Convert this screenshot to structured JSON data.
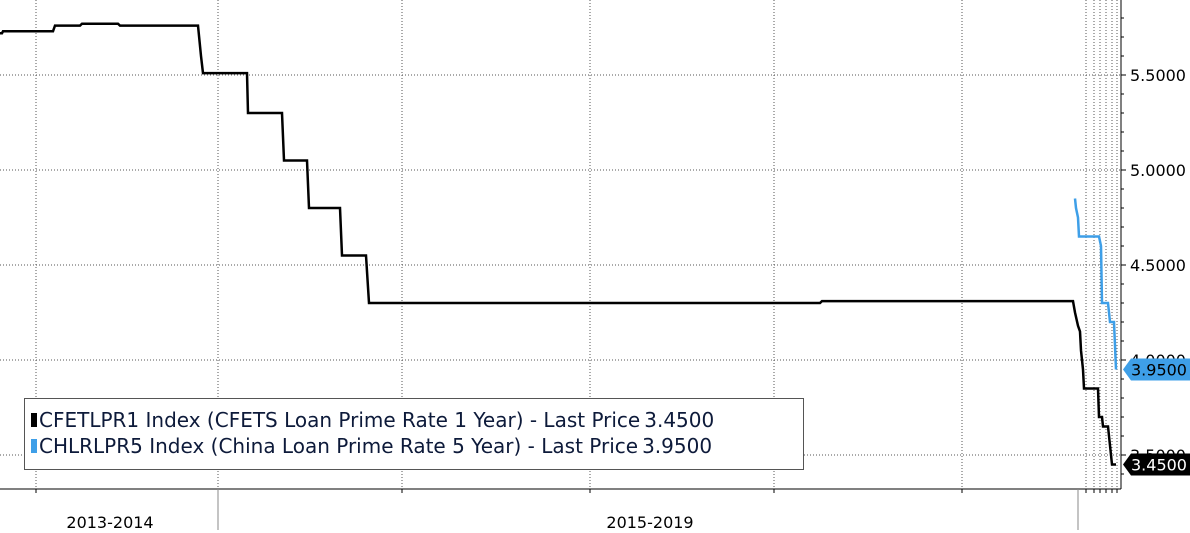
{
  "chart_data": {
    "type": "line",
    "x_period_labels": [
      "2013-2014",
      "2015-2019"
    ],
    "y_axis": {
      "position": "right",
      "ticks": [
        "5.5000",
        "5.0000",
        "4.5000",
        "4.0000",
        "3.5000"
      ],
      "ylim": [
        3.38,
        5.85
      ]
    },
    "grid": true,
    "legend_placement": "bottom-left",
    "series": [
      {
        "name": "CFETLPR1 Index (CFETS Loan Prime Rate 1 Year) - Last Price",
        "last_price": "3.4500",
        "color": "#000000",
        "values": [
          [
            0,
            5.72
          ],
          [
            2,
            5.72
          ],
          [
            3,
            5.73
          ],
          [
            53,
            5.73
          ],
          [
            55,
            5.76
          ],
          [
            80,
            5.76
          ],
          [
            82,
            5.77
          ],
          [
            118,
            5.77
          ],
          [
            120,
            5.76
          ],
          [
            198,
            5.76
          ],
          [
            201,
            5.6
          ],
          [
            203,
            5.51
          ],
          [
            247,
            5.51
          ],
          [
            248,
            5.3
          ],
          [
            282,
            5.3
          ],
          [
            284,
            5.05
          ],
          [
            307,
            5.05
          ],
          [
            309,
            4.8
          ],
          [
            340,
            4.8
          ],
          [
            342,
            4.55
          ],
          [
            366,
            4.55
          ],
          [
            369,
            4.3
          ],
          [
            820,
            4.3
          ],
          [
            822,
            4.31
          ],
          [
            1073,
            4.31
          ],
          [
            1075,
            4.25
          ],
          [
            1078,
            4.18
          ],
          [
            1080,
            4.15
          ],
          [
            1081,
            4.05
          ],
          [
            1083,
            3.95
          ],
          [
            1084,
            3.85
          ],
          [
            1098,
            3.85
          ],
          [
            1099,
            3.7
          ],
          [
            1102,
            3.7
          ],
          [
            1103,
            3.65
          ],
          [
            1108,
            3.65
          ],
          [
            1110,
            3.55
          ],
          [
            1112,
            3.45
          ],
          [
            1116,
            3.45
          ]
        ]
      },
      {
        "name": "CHLRLPR5 Index (China Loan Prime Rate 5 Year) - Last Price",
        "last_price": "3.9500",
        "color": "#3e9fe8",
        "values": [
          [
            1075,
            4.85
          ],
          [
            1076,
            4.8
          ],
          [
            1078,
            4.75
          ],
          [
            1079,
            4.65
          ],
          [
            1099,
            4.65
          ],
          [
            1101,
            4.6
          ],
          [
            1102,
            4.3
          ],
          [
            1108,
            4.3
          ],
          [
            1110,
            4.2
          ],
          [
            1114,
            4.2
          ],
          [
            1116,
            3.95
          ]
        ]
      }
    ],
    "last_price_labels": [
      "3.9500",
      "3.4500"
    ]
  }
}
